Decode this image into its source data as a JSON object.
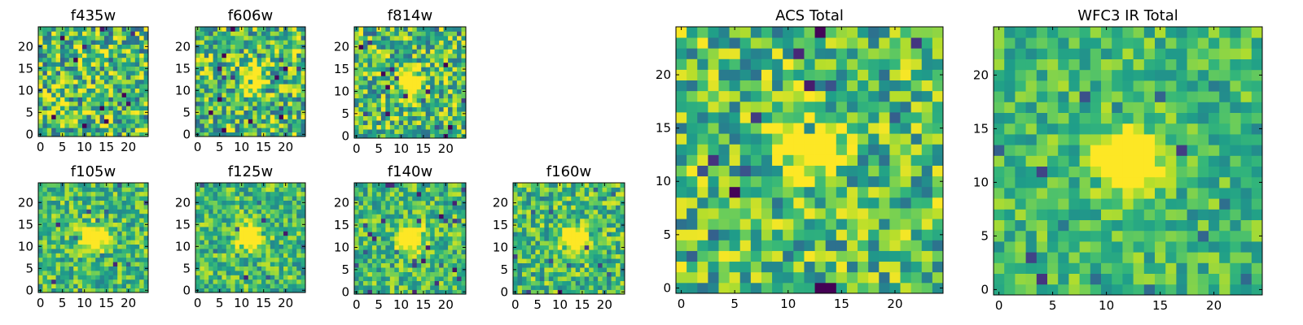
{
  "chart_data": [
    {
      "type": "heatmap",
      "title": "f435w",
      "xlim": [
        -0.5,
        24.5
      ],
      "ylim": [
        -0.5,
        24.5
      ],
      "xticks": [
        "0",
        "5",
        "10",
        "15",
        "20"
      ],
      "yticks": [
        "0",
        "5",
        "10",
        "15",
        "20"
      ],
      "grid": false,
      "colormap": "viridis",
      "peak": [
        12,
        12
      ],
      "peak_strength": 0.0,
      "noise": 0.85,
      "seed": 11
    },
    {
      "type": "heatmap",
      "title": "f606w",
      "xlim": [
        -0.5,
        24.5
      ],
      "ylim": [
        -0.5,
        24.5
      ],
      "xticks": [
        "0",
        "5",
        "10",
        "15",
        "20"
      ],
      "yticks": [
        "0",
        "5",
        "10",
        "15",
        "20"
      ],
      "grid": false,
      "colormap": "viridis",
      "peak": [
        12,
        13
      ],
      "peak_strength": 0.55,
      "noise": 0.8,
      "seed": 23
    },
    {
      "type": "heatmap",
      "title": "f814w",
      "xlim": [
        -0.5,
        24.5
      ],
      "ylim": [
        -0.5,
        24.5
      ],
      "xticks": [
        "0",
        "5",
        "10",
        "15",
        "20"
      ],
      "yticks": [
        "0",
        "5",
        "10",
        "15",
        "20"
      ],
      "grid": false,
      "colormap": "viridis",
      "peak": [
        12,
        12
      ],
      "peak_strength": 0.8,
      "noise": 0.75,
      "seed": 37
    },
    {
      "type": "heatmap",
      "title": "f105w",
      "xlim": [
        -0.5,
        24.5
      ],
      "ylim": [
        -0.5,
        24.5
      ],
      "xticks": [
        "0",
        "5",
        "10",
        "15",
        "20"
      ],
      "yticks": [
        "0",
        "5",
        "10",
        "15",
        "20"
      ],
      "grid": false,
      "colormap": "viridis",
      "peak": [
        12,
        12
      ],
      "peak_strength": 0.85,
      "noise": 0.55,
      "seed": 41
    },
    {
      "type": "heatmap",
      "title": "f125w",
      "xlim": [
        -0.5,
        24.5
      ],
      "ylim": [
        -0.5,
        24.5
      ],
      "xticks": [
        "0",
        "5",
        "10",
        "15",
        "20"
      ],
      "yticks": [
        "0",
        "5",
        "10",
        "15",
        "20"
      ],
      "grid": false,
      "colormap": "viridis",
      "peak": [
        12,
        12
      ],
      "peak_strength": 0.8,
      "noise": 0.55,
      "seed": 53
    },
    {
      "type": "heatmap",
      "title": "f140w",
      "xlim": [
        -0.5,
        24.5
      ],
      "ylim": [
        -0.5,
        24.5
      ],
      "xticks": [
        "0",
        "5",
        "10",
        "15",
        "20"
      ],
      "yticks": [
        "0",
        "5",
        "10",
        "15",
        "20"
      ],
      "grid": false,
      "colormap": "viridis",
      "peak": [
        12,
        12
      ],
      "peak_strength": 0.8,
      "noise": 0.55,
      "seed": 67
    },
    {
      "type": "heatmap",
      "title": "f160w",
      "xlim": [
        -0.5,
        24.5
      ],
      "ylim": [
        -0.5,
        24.5
      ],
      "xticks": [
        "0",
        "5",
        "10",
        "15",
        "20"
      ],
      "yticks": [
        "0",
        "5",
        "10",
        "15",
        "20"
      ],
      "grid": false,
      "colormap": "viridis",
      "peak": [
        13,
        12
      ],
      "peak_strength": 0.8,
      "noise": 0.6,
      "seed": 79
    },
    {
      "type": "heatmap",
      "title": "ACS Total",
      "xlim": [
        -0.5,
        24.5
      ],
      "ylim": [
        -0.5,
        24.5
      ],
      "xticks": [
        "0",
        "5",
        "10",
        "15",
        "20"
      ],
      "yticks": [
        "0",
        "5",
        "10",
        "15",
        "20"
      ],
      "grid": false,
      "colormap": "viridis",
      "peak": [
        12,
        13
      ],
      "peak_strength": 0.7,
      "noise": 0.7,
      "seed": 97
    },
    {
      "type": "heatmap",
      "title": "WFC3 IR Total",
      "xlim": [
        -0.5,
        24.5
      ],
      "ylim": [
        -0.5,
        24.5
      ],
      "xticks": [
        "0",
        "5",
        "10",
        "15",
        "20"
      ],
      "yticks": [
        "0",
        "5",
        "10",
        "15",
        "20"
      ],
      "grid": false,
      "colormap": "viridis",
      "peak": [
        12,
        12
      ],
      "peak_strength": 0.95,
      "noise": 0.45,
      "seed": 131
    }
  ]
}
